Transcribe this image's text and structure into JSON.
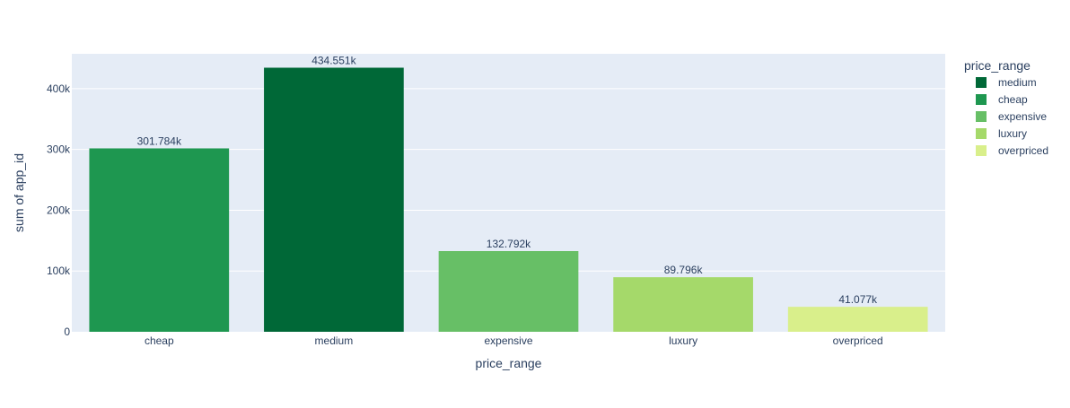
{
  "chart_data": {
    "type": "bar",
    "xlabel": "price_range",
    "ylabel": "sum of app_id",
    "categories": [
      "cheap",
      "medium",
      "expensive",
      "luxury",
      "overpriced"
    ],
    "values": [
      301784,
      434551,
      132792,
      89796,
      41077
    ],
    "value_labels": [
      "301.784k",
      "434.551k",
      "132.792k",
      "89.796k",
      "41.077k"
    ],
    "bar_colors": [
      "#1e9750",
      "#006837",
      "#67bf66",
      "#a5d96a",
      "#d9ef8b"
    ],
    "ylim": [
      0,
      457422
    ],
    "yticks": [
      0,
      100000,
      200000,
      300000,
      400000
    ],
    "ytick_labels": [
      "0",
      "100k",
      "200k",
      "300k",
      "400k"
    ],
    "grid": true,
    "plot_background": "#e5ecf6",
    "legend": {
      "title": "price_range",
      "placement": "right",
      "entries": [
        {
          "label": "medium",
          "color": "#006837"
        },
        {
          "label": "cheap",
          "color": "#1e9750"
        },
        {
          "label": "expensive",
          "color": "#67bf66"
        },
        {
          "label": "luxury",
          "color": "#a5d96a"
        },
        {
          "label": "overpriced",
          "color": "#d9ef8b"
        }
      ]
    }
  }
}
